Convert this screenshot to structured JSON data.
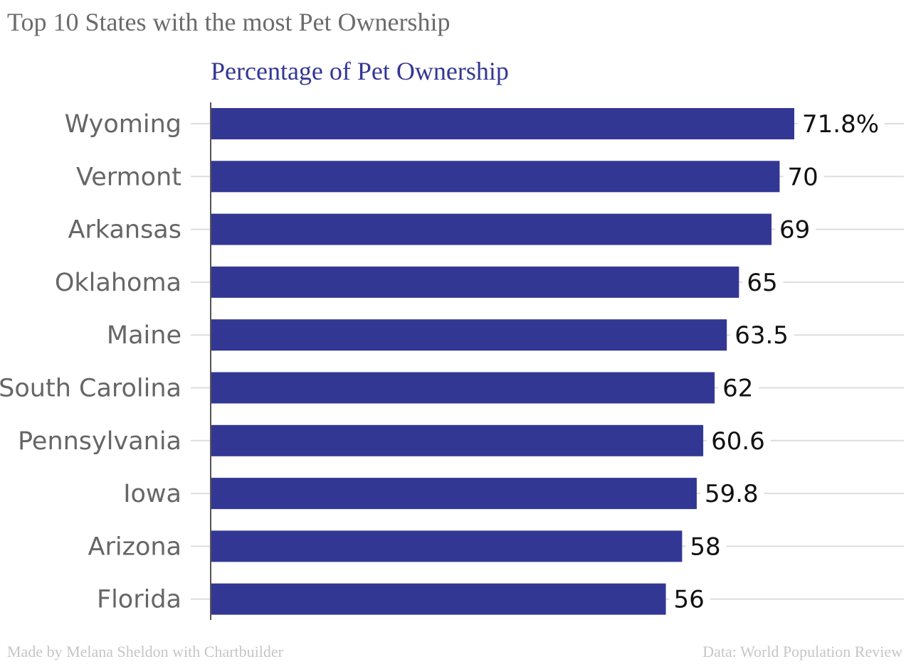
{
  "chart_data": {
    "type": "bar",
    "orientation": "horizontal",
    "title": "Top 10 States with the most Pet Ownership",
    "series": [
      {
        "name": "Percentage of Pet Ownership",
        "values": [
          71.8,
          70,
          69,
          65,
          63.5,
          62,
          60.6,
          59.8,
          58,
          56
        ],
        "value_labels": [
          "71.8%",
          "70",
          "69",
          "65",
          "63.5",
          "62",
          "60.6",
          "59.8",
          "58",
          "56"
        ]
      }
    ],
    "categories": [
      "Wyoming",
      "Vermont",
      "Arkansas",
      "Oklahoma",
      "Maine",
      "South Carolina",
      "Pennsylvania",
      "Iowa",
      "Arizona",
      "Florida"
    ],
    "xlim": [
      0,
      85
    ],
    "grid": true,
    "bar_color": "#333794",
    "series_label_color": "#333794"
  },
  "footer": {
    "credit": "Made by Melana Sheldon with Chartbuilder",
    "source": "Data: World Population Review"
  }
}
